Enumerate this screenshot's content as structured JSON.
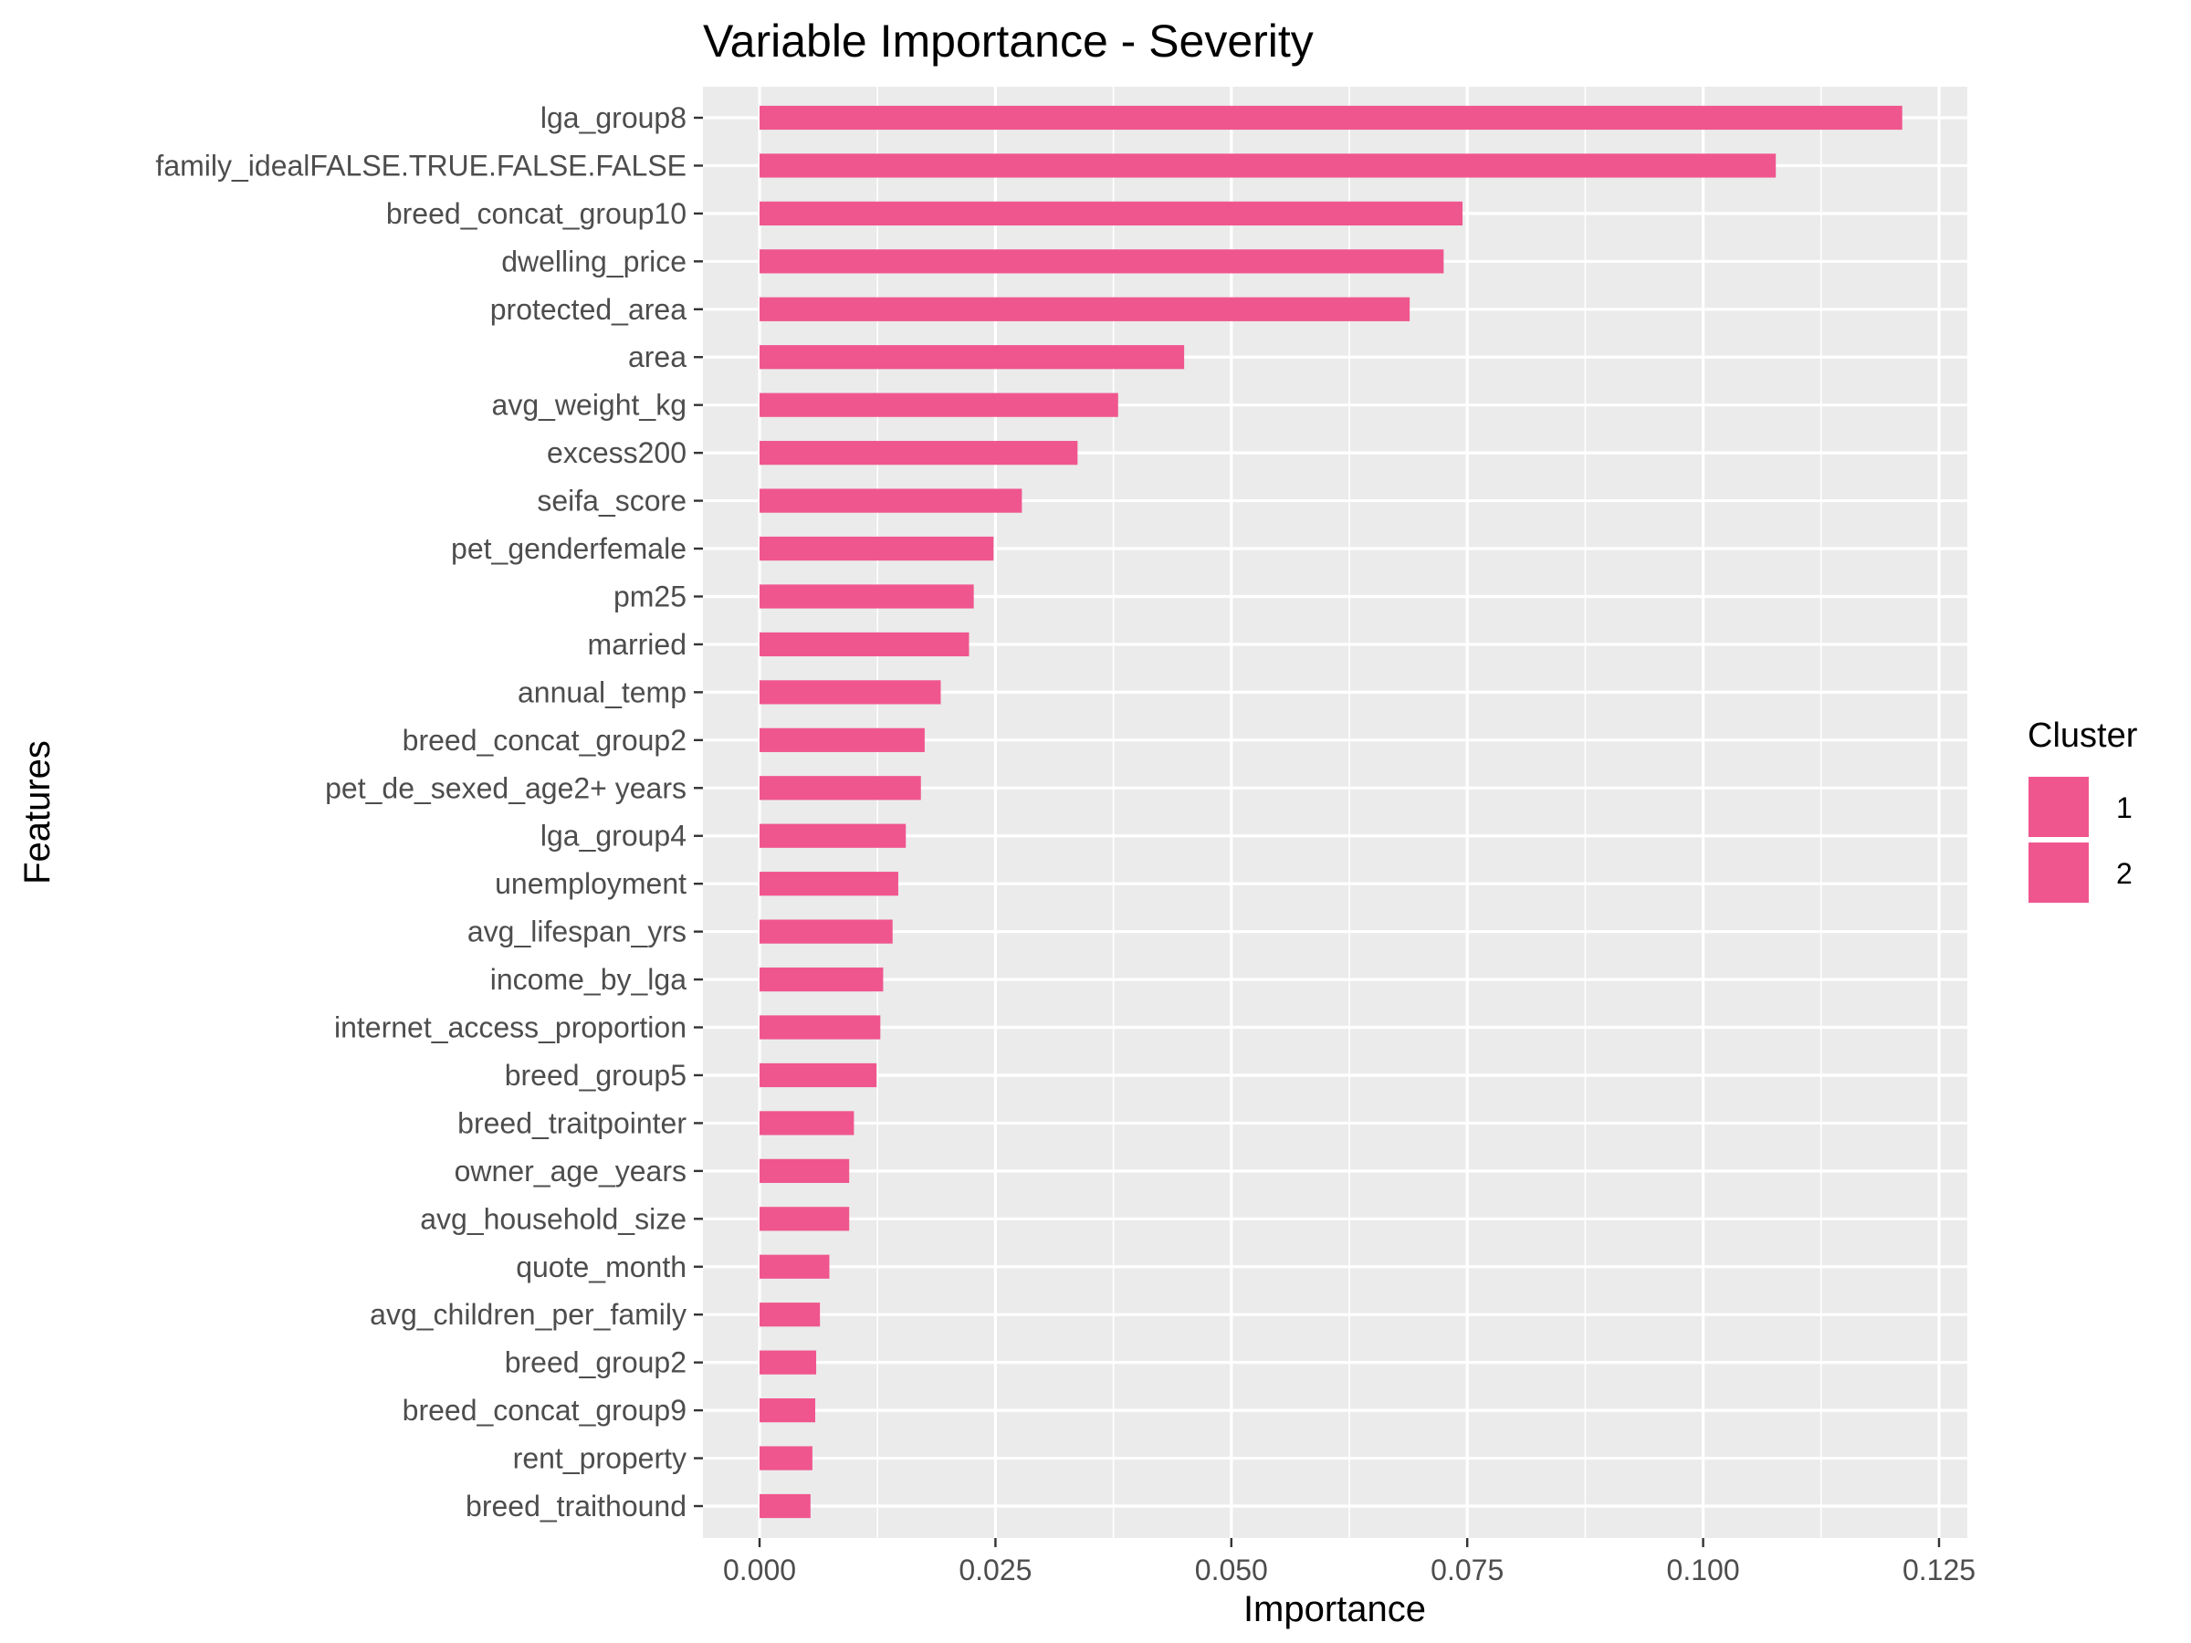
{
  "chart_data": {
    "type": "bar",
    "orientation": "horizontal",
    "title": "Variable Importance - Severity",
    "xlabel": "Importance",
    "ylabel": "Features",
    "xlim": [
      -0.006,
      0.128
    ],
    "x_ticks": [
      {
        "value": 0.0,
        "label": "0.000"
      },
      {
        "value": 0.025,
        "label": "0.025"
      },
      {
        "value": 0.05,
        "label": "0.050"
      },
      {
        "value": 0.075,
        "label": "0.075"
      },
      {
        "value": 0.1,
        "label": "0.100"
      },
      {
        "value": 0.125,
        "label": "0.125"
      }
    ],
    "grid": true,
    "bar_color": "#F0568E",
    "panel_color": "#EBEBEB",
    "categories": [
      "lga_group8",
      "family_idealFALSE.TRUE.FALSE.FALSE",
      "breed_concat_group10",
      "dwelling_price",
      "protected_area",
      "area",
      "avg_weight_kg",
      "excess200",
      "seifa_score",
      "pet_genderfemale",
      "pm25",
      "married",
      "annual_temp",
      "breed_concat_group2",
      "pet_de_sexed_age2+ years",
      "lga_group4",
      "unemployment",
      "avg_lifespan_yrs",
      "income_by_lga",
      "internet_access_proportion",
      "breed_group5",
      "breed_traitpointer",
      "owner_age_years",
      "avg_household_size",
      "quote_month",
      "avg_children_per_family",
      "breed_group2",
      "breed_concat_group9",
      "rent_property",
      "breed_traithound"
    ],
    "values": [
      0.1211,
      0.1077,
      0.0745,
      0.0725,
      0.0689,
      0.045,
      0.038,
      0.0337,
      0.0278,
      0.0248,
      0.0227,
      0.0222,
      0.0192,
      0.0175,
      0.0171,
      0.0155,
      0.0147,
      0.0141,
      0.0131,
      0.0128,
      0.0124,
      0.01,
      0.0095,
      0.0095,
      0.0074,
      0.0064,
      0.006,
      0.0059,
      0.0056,
      0.0054
    ],
    "legend": {
      "title": "Cluster",
      "placement": "right",
      "entries": [
        {
          "label": "1",
          "color": "#F0568E"
        },
        {
          "label": "2",
          "color": "#F0568E"
        }
      ]
    }
  }
}
